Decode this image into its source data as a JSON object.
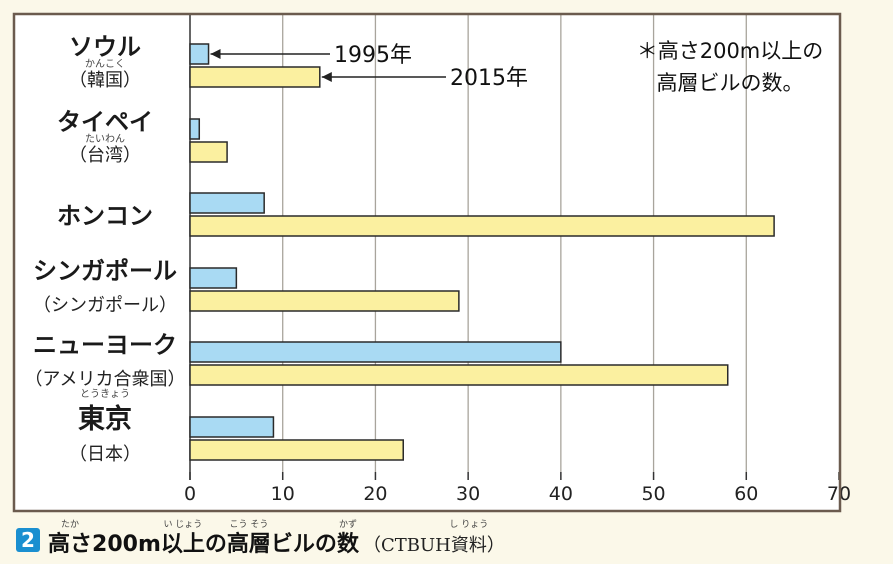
{
  "chart_data": {
    "type": "bar",
    "orientation": "horizontal",
    "categories": [
      {
        "name": "ソウル",
        "ruby": "かんこく",
        "sub": "（韓国）"
      },
      {
        "name": "タイペイ",
        "ruby": "たいわん",
        "sub": "（台湾）"
      },
      {
        "name": "ホンコン",
        "ruby": "",
        "sub": ""
      },
      {
        "name": "シンガポール",
        "ruby": "",
        "sub": "（シンガポール）"
      },
      {
        "name": "ニューヨーク",
        "ruby": "",
        "sub": "（アメリカ合衆国）"
      },
      {
        "name": "東京",
        "ruby": "とうきょう",
        "sub": "（日本）"
      }
    ],
    "series": [
      {
        "name": "1995年",
        "color": "#a9daf3",
        "values": [
          2,
          1,
          8,
          5,
          40,
          9
        ]
      },
      {
        "name": "2015年",
        "color": "#fbf0a0",
        "values": [
          14,
          4,
          63,
          29,
          58,
          23
        ]
      }
    ],
    "xlim": [
      0,
      70
    ],
    "xticks": [
      "0",
      "10",
      "20",
      "30",
      "40",
      "50",
      "60",
      "70"
    ],
    "grid": true,
    "note": [
      "＊高さ200m以上の",
      "高層ビルの数。"
    ]
  },
  "caption": {
    "number": "2",
    "parts": [
      {
        "text": "高さ",
        "ruby": "たか"
      },
      {
        "text": "200m",
        "ruby": ""
      },
      {
        "text": "以上",
        "ruby": "い じょう"
      },
      {
        "text": "の ",
        "ruby": ""
      },
      {
        "text": "高層",
        "ruby": "こう そう"
      },
      {
        "text": "ビルの ",
        "ruby": ""
      },
      {
        "text": "数",
        "ruby": "かず"
      }
    ],
    "source_prefix": "（CTBUH",
    "source_word": "資料",
    "source_ruby": "し りょう",
    "source_suffix": "）"
  },
  "colors": {
    "background": "#fbf8e9",
    "frame": "#6b5b4e",
    "grid": "#a8a49c",
    "number_badge": "#1a8fd0"
  }
}
